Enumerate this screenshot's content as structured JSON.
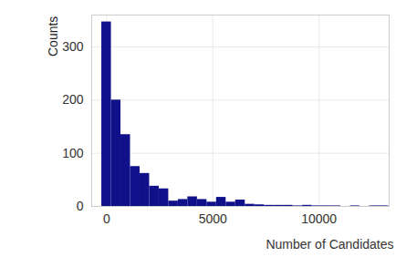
{
  "chart_data": {
    "type": "histogram",
    "x_label": "Number of Candidates",
    "y_label": "Counts",
    "bins": [
      -225,
      225,
      675,
      1125,
      1575,
      2025,
      2475,
      2925,
      3375,
      3825,
      4275,
      4725,
      5175,
      5625,
      6075,
      6525,
      6975,
      7425,
      7875,
      8325,
      8775,
      9225,
      9675,
      10125,
      10575,
      11025,
      11475,
      11925,
      12375,
      12825,
      13275
    ],
    "values": [
      347,
      200,
      135,
      75,
      62,
      38,
      33,
      10,
      13,
      18,
      13,
      8,
      17,
      8,
      12,
      4,
      3,
      2,
      2,
      2,
      1,
      2,
      1,
      1,
      1,
      0,
      1,
      0,
      1,
      1
    ],
    "color": "#10108a",
    "xlim": [
      -700,
      13300
    ],
    "xticks": [
      0,
      5000,
      10000
    ],
    "ylim": [
      0,
      360
    ],
    "yticks": [
      0,
      100,
      200,
      300
    ],
    "grid": true
  }
}
